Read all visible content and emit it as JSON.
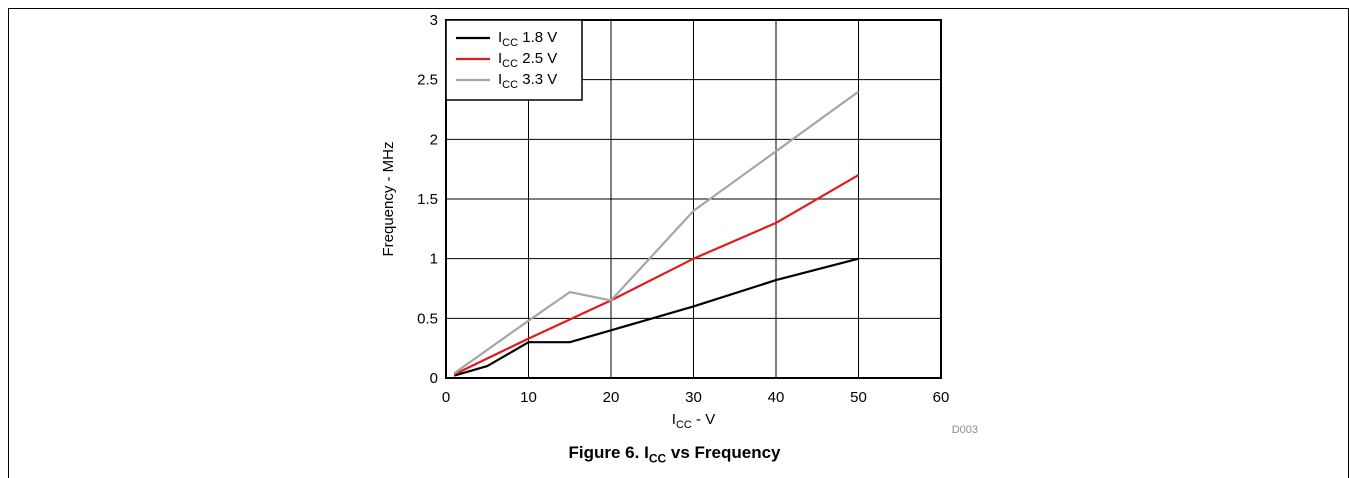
{
  "chart_data": {
    "type": "line",
    "xlabel": {
      "main": "I",
      "sub": "CC",
      "rest": " - V"
    },
    "ylabel": "Frequency - MHz",
    "xlim": [
      0,
      60
    ],
    "ylim": [
      0,
      3
    ],
    "xticks": [
      "0",
      "10",
      "20",
      "30",
      "40",
      "50",
      "60"
    ],
    "yticks": [
      "0",
      "0.5",
      "1",
      "1.5",
      "2",
      "2.5",
      "3"
    ],
    "grid": true,
    "legend_position": "top-left",
    "series": [
      {
        "name": {
          "main": "I",
          "sub": "CC",
          "rest": " 1.8 V"
        },
        "color": "#000000",
        "x": [
          1,
          5,
          10,
          15,
          20,
          30,
          40,
          50
        ],
        "y": [
          0.02,
          0.1,
          0.3,
          0.3,
          0.4,
          0.6,
          0.82,
          1.0
        ]
      },
      {
        "name": {
          "main": "I",
          "sub": "CC",
          "rest": " 2.5 V"
        },
        "color": "#e41a1c",
        "x": [
          1,
          10,
          20,
          30,
          40,
          50
        ],
        "y": [
          0.03,
          0.33,
          0.65,
          1.0,
          1.3,
          1.7
        ]
      },
      {
        "name": {
          "main": "I",
          "sub": "CC",
          "rest": " 3.3 V"
        },
        "color": "#a6a6a6",
        "x": [
          1,
          10,
          15,
          20,
          30,
          40,
          50
        ],
        "y": [
          0.04,
          0.48,
          0.72,
          0.65,
          1.4,
          1.9,
          2.4
        ]
      }
    ]
  },
  "code_label": "D003",
  "caption": {
    "prefix": "Figure 6. I",
    "sub": "CC",
    "suffix": " vs Frequency"
  }
}
